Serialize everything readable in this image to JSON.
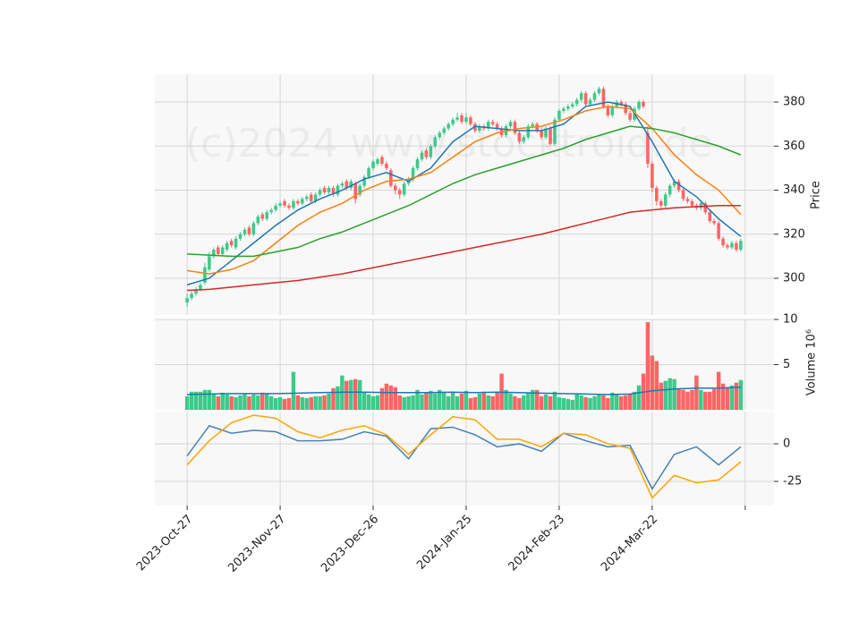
{
  "chart_data": [
    {
      "type": "candlestick",
      "watermark": "(c)2024 www.stocktroid.de",
      "ylabel": "Price",
      "ylim": [
        283.35,
        392.6
      ],
      "yticks": [
        300,
        320,
        340,
        360,
        380
      ],
      "grid": true,
      "up_color": "#3ec98a",
      "down_color": "#ff6464",
      "open": [
        289,
        291,
        293,
        295,
        298,
        304,
        310,
        314,
        311,
        313,
        317,
        314,
        318,
        320,
        323,
        320,
        325,
        329,
        327,
        330,
        331,
        333,
        335,
        333,
        332,
        335,
        334,
        336,
        338,
        335,
        338,
        341,
        339,
        341,
        338,
        342,
        344,
        341,
        343,
        338,
        342,
        346,
        350,
        352,
        355,
        352,
        349,
        342,
        340,
        338,
        343,
        345,
        350,
        354,
        358,
        355,
        360,
        364,
        366,
        368,
        370,
        372,
        374,
        371,
        373,
        370,
        367,
        369,
        368,
        371,
        370,
        368,
        365,
        369,
        371,
        366,
        362,
        364,
        369,
        370,
        367,
        364,
        368,
        361,
        372,
        376,
        377,
        378,
        379,
        381,
        384,
        379,
        381,
        384,
        386,
        378,
        374,
        378,
        380,
        379,
        375,
        372,
        377,
        380,
        366,
        352,
        341,
        335,
        333,
        338,
        342,
        344,
        340,
        336,
        335,
        333,
        332,
        334,
        330,
        326,
        325,
        318,
        315,
        314,
        316,
        313
      ],
      "high": [
        293,
        294,
        296,
        298,
        307,
        312,
        314,
        315,
        315,
        317,
        318,
        319,
        321,
        323,
        324,
        326,
        329,
        330,
        331,
        332,
        334,
        335,
        336,
        334,
        336,
        336,
        337,
        338,
        339,
        339,
        341,
        342,
        342,
        342,
        343,
        344,
        345,
        345,
        344,
        343,
        347,
        351,
        354,
        355,
        356,
        353,
        350,
        343,
        341,
        344,
        346,
        351,
        355,
        358,
        359,
        361,
        365,
        367,
        369,
        371,
        373,
        375,
        375,
        375,
        374,
        371,
        370,
        370,
        372,
        372,
        371,
        369,
        370,
        372,
        372,
        367,
        365,
        370,
        371,
        371,
        368,
        369,
        369,
        373,
        377,
        378,
        379,
        380,
        382,
        385,
        385,
        382,
        385,
        387,
        387,
        379,
        379,
        381,
        381,
        380,
        376,
        378,
        381,
        381,
        369,
        353,
        342,
        336,
        339,
        343,
        345,
        345,
        341,
        337,
        336,
        334,
        335,
        335,
        331,
        327,
        326,
        319,
        316,
        317,
        317,
        318
      ],
      "low": [
        287,
        290,
        292,
        294,
        297,
        303,
        309,
        310,
        310,
        312,
        314,
        313,
        317,
        319,
        319,
        319,
        324,
        326,
        326,
        329,
        330,
        332,
        332,
        331,
        331,
        333,
        333,
        335,
        334,
        334,
        337,
        338,
        338,
        337,
        337,
        341,
        340,
        340,
        334,
        337,
        341,
        345,
        349,
        351,
        351,
        349,
        341,
        338,
        336,
        337,
        342,
        344,
        349,
        353,
        354,
        354,
        359,
        363,
        365,
        367,
        369,
        371,
        370,
        370,
        369,
        366,
        366,
        367,
        367,
        369,
        367,
        364,
        364,
        368,
        365,
        361,
        361,
        363,
        368,
        366,
        363,
        363,
        360,
        360,
        371,
        375,
        376,
        377,
        378,
        380,
        378,
        378,
        380,
        383,
        377,
        373,
        373,
        377,
        378,
        374,
        371,
        371,
        376,
        377,
        350,
        339,
        333,
        331,
        332,
        337,
        341,
        339,
        335,
        334,
        332,
        331,
        331,
        329,
        325,
        324,
        317,
        314,
        313,
        313,
        312,
        312
      ],
      "close": [
        291,
        293,
        295,
        297,
        305,
        310,
        313,
        311,
        314,
        316,
        315,
        318,
        320,
        322,
        320,
        325,
        328,
        327,
        330,
        331,
        333,
        334,
        333,
        332,
        335,
        334,
        336,
        337,
        335,
        338,
        340,
        339,
        341,
        338,
        342,
        343,
        341,
        344,
        336,
        342,
        346,
        350,
        353,
        354,
        352,
        350,
        342,
        340,
        338,
        343,
        345,
        350,
        354,
        357,
        355,
        360,
        364,
        366,
        368,
        370,
        372,
        373,
        371,
        373,
        370,
        367,
        369,
        368,
        371,
        370,
        368,
        365,
        369,
        371,
        366,
        362,
        364,
        369,
        370,
        367,
        364,
        368,
        361,
        372,
        376,
        377,
        378,
        379,
        381,
        384,
        379,
        381,
        384,
        386,
        378,
        374,
        378,
        380,
        379,
        375,
        372,
        377,
        380,
        378,
        352,
        341,
        335,
        333,
        338,
        342,
        344,
        340,
        336,
        335,
        333,
        332,
        334,
        330,
        326,
        325,
        318,
        315,
        314,
        316,
        313,
        317
      ],
      "series": [
        {
          "color": "#1f77b4",
          "x": [
            0,
            5,
            10,
            15,
            20,
            25,
            30,
            35,
            40,
            45,
            50,
            55,
            60,
            65,
            70,
            75,
            80,
            85,
            90,
            95,
            100,
            105,
            110,
            115,
            120,
            125
          ],
          "values": [
            297,
            300,
            308,
            316,
            324,
            331,
            336,
            340,
            345,
            348,
            344,
            350,
            362,
            369,
            368,
            367,
            367,
            370,
            378,
            380,
            378,
            362,
            344,
            337,
            327,
            319
          ]
        },
        {
          "color": "#ff7f0e",
          "x": [
            0,
            5,
            10,
            15,
            20,
            25,
            30,
            35,
            40,
            45,
            50,
            55,
            60,
            65,
            70,
            75,
            80,
            85,
            90,
            95,
            100,
            105,
            110,
            115,
            120,
            125
          ],
          "values": [
            303.5,
            302,
            304,
            308,
            316,
            324,
            330,
            334,
            340,
            344,
            345,
            348,
            355,
            362,
            366,
            368,
            369,
            372,
            376,
            378,
            377,
            368,
            356,
            347,
            340,
            329
          ]
        },
        {
          "color": "#2ca02c",
          "x": [
            0,
            5,
            10,
            15,
            20,
            25,
            30,
            35,
            40,
            45,
            50,
            55,
            60,
            65,
            70,
            75,
            80,
            85,
            90,
            95,
            100,
            105,
            110,
            115,
            120,
            125
          ],
          "values": [
            311,
            310.5,
            310,
            310,
            312,
            314,
            318,
            321,
            325,
            329,
            333,
            338,
            343,
            347,
            350,
            353,
            356,
            359,
            363,
            366,
            369,
            368,
            366,
            363,
            360,
            356
          ]
        },
        {
          "color": "#d62728",
          "x": [
            0,
            5,
            10,
            15,
            20,
            25,
            30,
            35,
            40,
            45,
            50,
            55,
            60,
            65,
            70,
            75,
            80,
            85,
            90,
            95,
            100,
            105,
            110,
            115,
            120,
            125
          ],
          "values": [
            294.5,
            295,
            296,
            297,
            298,
            299,
            300.5,
            302,
            304,
            306,
            308,
            310,
            312,
            314,
            316,
            318,
            320,
            322.5,
            325,
            327.5,
            330,
            331,
            332,
            332.5,
            333,
            333
          ]
        }
      ]
    },
    {
      "type": "bar",
      "ylabel": "Volume  10⁶",
      "ylim": [
        0,
        10
      ],
      "yticks": [
        5,
        10
      ],
      "grid": true,
      "values": [
        1.5,
        2.0,
        2.0,
        2.0,
        2.2,
        2.2,
        1.8,
        1.5,
        1.9,
        1.7,
        1.5,
        1.4,
        1.6,
        1.8,
        1.5,
        1.7,
        1.6,
        1.9,
        1.8,
        1.5,
        1.3,
        1.4,
        1.2,
        1.3,
        4.2,
        1.6,
        1.4,
        1.3,
        1.4,
        1.5,
        1.5,
        1.6,
        1.8,
        2.4,
        2.6,
        3.8,
        3.2,
        3.3,
        3.4,
        3.3,
        2.0,
        1.7,
        1.5,
        1.6,
        2.4,
        2.9,
        2.7,
        2.5,
        1.6,
        1.4,
        1.5,
        1.6,
        2.2,
        1.7,
        1.9,
        2.1,
        1.8,
        2.2,
        2.0,
        1.5,
        2.0,
        1.5,
        1.8,
        2.1,
        1.3,
        1.4,
        1.8,
        2.0,
        1.6,
        1.5,
        1.9,
        4.0,
        2.2,
        1.8,
        1.5,
        1.3,
        1.6,
        1.9,
        2.2,
        2.2,
        1.5,
        1.7,
        1.5,
        2.0,
        1.4,
        1.3,
        1.2,
        1.1,
        1.8,
        1.6,
        1.4,
        1.3,
        1.5,
        1.7,
        1.6,
        1.3,
        1.9,
        1.7,
        1.5,
        1.6,
        1.8,
        2.0,
        2.7,
        4.0,
        9.7,
        6.0,
        5.4,
        3.0,
        3.2,
        3.5,
        3.4,
        2.4,
        2.2,
        2.0,
        2.2,
        3.8,
        2.2,
        2.0,
        2.0,
        2.3,
        4.2,
        2.9,
        2.5,
        2.7,
        3.0,
        3.3
      ],
      "series": [
        {
          "color": "#1f77b4",
          "x": [
            0,
            5,
            10,
            15,
            20,
            25,
            30,
            35,
            40,
            45,
            50,
            55,
            60,
            65,
            70,
            75,
            80,
            85,
            90,
            95,
            100,
            105,
            110,
            115,
            120,
            125
          ],
          "values": [
            1.7,
            1.75,
            1.8,
            1.8,
            1.8,
            1.85,
            1.9,
            1.95,
            1.95,
            1.9,
            1.9,
            1.9,
            1.95,
            1.9,
            1.95,
            1.9,
            1.85,
            1.8,
            1.75,
            1.7,
            1.75,
            2.1,
            2.3,
            2.4,
            2.4,
            2.5
          ]
        }
      ]
    },
    {
      "type": "line",
      "ylim": [
        -41.1,
        21.4
      ],
      "yticks": [
        -25,
        0
      ],
      "grid": true,
      "xlim": [
        -7.3,
        132.5
      ],
      "xticks": [
        {
          "value": 0,
          "label": "2023-Oct-27"
        },
        {
          "value": 21,
          "label": "2023-Nov-27"
        },
        {
          "value": 42,
          "label": "2023-Dec-26"
        },
        {
          "value": 63,
          "label": "2024-Jan-25"
        },
        {
          "value": 84,
          "label": "2024-Feb-23"
        },
        {
          "value": 105,
          "label": "2024-Mar-22"
        },
        {
          "value": 126,
          "label": null
        }
      ],
      "series": [
        {
          "color": "#4682b4",
          "x": [
            0,
            5,
            10,
            15,
            20,
            25,
            30,
            35,
            40,
            45,
            50,
            55,
            60,
            65,
            70,
            75,
            80,
            85,
            90,
            95,
            100,
            105,
            110,
            115,
            120,
            125
          ],
          "values": [
            -8,
            12,
            7,
            9,
            8,
            2,
            2,
            3,
            8,
            5,
            -10,
            10,
            11,
            6,
            -2,
            0,
            -5,
            7,
            2,
            -2,
            -1,
            -30,
            -7,
            -2,
            -14,
            -2
          ]
        },
        {
          "color": "#ffa500",
          "x": [
            0,
            5,
            10,
            15,
            20,
            25,
            30,
            35,
            40,
            45,
            50,
            55,
            60,
            65,
            70,
            75,
            80,
            85,
            90,
            95,
            100,
            105,
            110,
            115,
            120,
            125
          ],
          "values": [
            -14,
            2,
            14,
            19,
            17,
            8,
            4,
            9,
            12,
            6,
            -7,
            6,
            18,
            16,
            3,
            3,
            -2,
            7,
            6,
            0,
            -3,
            -36,
            -21,
            -26,
            -24,
            -12
          ]
        }
      ]
    }
  ]
}
